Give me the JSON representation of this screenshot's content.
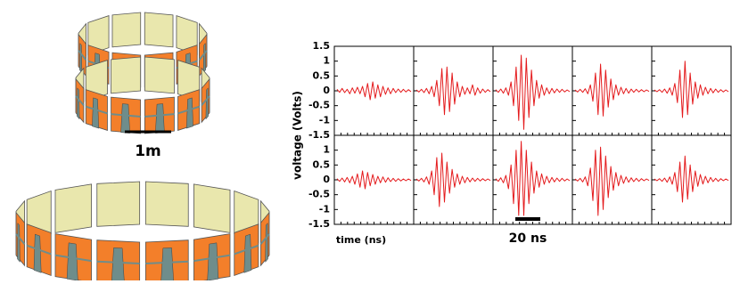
{
  "figure": {
    "scale_label": "1m"
  },
  "chart_data": [
    {
      "type": "line",
      "ylabel": "voltage (Volts)",
      "color": "#e41a1c",
      "ylim": [
        -1.5,
        1.5
      ],
      "yticks": [
        -1.5,
        -1,
        -0.5,
        0,
        0.5,
        1,
        1.5
      ],
      "values": [
        0.05,
        -0.05,
        0.08,
        -0.06,
        0.05,
        -0.1,
        0.1,
        -0.08,
        0.12,
        -0.1,
        0.15,
        -0.2,
        0.25,
        -0.3,
        0.3,
        -0.25,
        0.2,
        -0.2,
        0.15,
        -0.12,
        0.1,
        -0.1,
        0.08,
        -0.06,
        0.06,
        -0.05,
        0.05,
        -0.04,
        0.04,
        -0.03
      ]
    },
    {
      "type": "line",
      "color": "#e41a1c",
      "ylim": [
        -1.5,
        1.5
      ],
      "yticks": [
        -1.5,
        -1,
        -0.5,
        0,
        0.5,
        1,
        1.5
      ],
      "values": [
        0.03,
        -0.04,
        0.05,
        -0.06,
        0.08,
        -0.1,
        0.15,
        -0.2,
        0.35,
        -0.5,
        0.75,
        -0.8,
        0.8,
        -0.7,
        0.6,
        -0.45,
        0.3,
        -0.2,
        0.15,
        -0.12,
        0.1,
        -0.1,
        0.2,
        -0.15,
        0.1,
        -0.08,
        0.06,
        -0.05,
        0.04,
        -0.03
      ]
    },
    {
      "type": "line",
      "color": "#e41a1c",
      "ylim": [
        -1.5,
        1.5
      ],
      "yticks": [
        -1.5,
        -1,
        -0.5,
        0,
        0.5,
        1,
        1.5
      ],
      "values": [
        0.04,
        -0.05,
        0.06,
        -0.08,
        0.1,
        -0.15,
        0.3,
        -0.5,
        0.8,
        -1.0,
        1.2,
        -1.3,
        1.1,
        -0.9,
        0.7,
        -0.5,
        0.35,
        -0.25,
        0.2,
        -0.15,
        0.1,
        -0.1,
        0.08,
        -0.07,
        0.06,
        -0.05,
        0.05,
        -0.04,
        0.03,
        -0.03
      ]
    },
    {
      "type": "line",
      "color": "#e41a1c",
      "ylim": [
        -1.5,
        1.5
      ],
      "yticks": [
        -1.5,
        -1,
        -0.5,
        0,
        0.5,
        1,
        1.5
      ],
      "values": [
        0.03,
        -0.04,
        0.05,
        -0.05,
        0.07,
        -0.1,
        0.2,
        -0.35,
        0.6,
        -0.8,
        0.9,
        -0.85,
        0.7,
        -0.55,
        0.4,
        -0.3,
        0.2,
        -0.15,
        0.12,
        -0.1,
        0.08,
        -0.08,
        0.06,
        -0.05,
        0.05,
        -0.04,
        0.04,
        -0.03,
        0.03,
        -0.02
      ]
    },
    {
      "type": "line",
      "color": "#e41a1c",
      "ylim": [
        -1.5,
        1.5
      ],
      "yticks": [
        -1.5,
        -1,
        -0.5,
        0,
        0.5,
        1,
        1.5
      ],
      "values": [
        0.03,
        -0.03,
        0.04,
        -0.05,
        0.06,
        -0.08,
        0.1,
        -0.15,
        0.25,
        -0.4,
        0.7,
        -0.9,
        1.0,
        -0.8,
        0.6,
        -0.45,
        0.3,
        -0.25,
        0.2,
        -0.15,
        0.12,
        -0.1,
        0.08,
        -0.07,
        0.06,
        -0.05,
        0.04,
        -0.04,
        0.03,
        -0.03
      ]
    },
    {
      "type": "line",
      "xlabel": "time (ns)",
      "color": "#e41a1c",
      "ylim": [
        -1.5,
        1.5
      ],
      "yticks": [
        -1.5,
        -1,
        -0.5,
        0,
        0.5,
        1
      ],
      "values": [
        0.04,
        -0.05,
        0.06,
        -0.07,
        0.08,
        -0.1,
        0.12,
        -0.15,
        0.2,
        -0.25,
        0.3,
        -0.3,
        0.25,
        -0.2,
        0.18,
        -0.15,
        0.12,
        -0.1,
        0.1,
        -0.08,
        0.07,
        -0.06,
        0.05,
        -0.05,
        0.04,
        -0.04,
        0.03,
        -0.03,
        0.03,
        -0.02
      ]
    },
    {
      "type": "line",
      "color": "#e41a1c",
      "ylim": [
        -1.5,
        1.5
      ],
      "yticks": [
        -1.5,
        -1,
        -0.5,
        0,
        0.5,
        1
      ],
      "values": [
        0.03,
        -0.04,
        0.05,
        -0.07,
        0.1,
        -0.15,
        0.3,
        -0.5,
        0.75,
        -0.9,
        0.9,
        -0.75,
        0.6,
        -0.45,
        0.35,
        -0.25,
        0.2,
        -0.15,
        0.12,
        -0.1,
        0.08,
        -0.07,
        0.06,
        -0.05,
        0.05,
        -0.04,
        0.04,
        -0.03,
        0.03,
        -0.02
      ]
    },
    {
      "type": "line",
      "annotation": "20 ns",
      "color": "#e41a1c",
      "ylim": [
        -1.5,
        1.5
      ],
      "yticks": [
        -1.5,
        -1,
        -0.5,
        0,
        0.5,
        1
      ],
      "values": [
        0.04,
        -0.05,
        0.07,
        -0.1,
        0.15,
        -0.3,
        0.5,
        -0.8,
        1.0,
        -1.2,
        1.3,
        -1.2,
        1.0,
        -0.8,
        0.6,
        -0.45,
        0.3,
        -0.25,
        0.2,
        -0.15,
        0.12,
        -0.1,
        0.08,
        -0.07,
        0.06,
        -0.05,
        0.05,
        -0.04,
        0.03,
        -0.03
      ]
    },
    {
      "type": "line",
      "color": "#e41a1c",
      "ylim": [
        -1.5,
        1.5
      ],
      "yticks": [
        -1.5,
        -1,
        -0.5,
        0,
        0.5,
        1
      ],
      "values": [
        0.03,
        -0.04,
        0.05,
        -0.07,
        0.1,
        -0.2,
        0.4,
        -0.7,
        1.0,
        -1.2,
        1.1,
        -1.0,
        0.8,
        -0.6,
        0.45,
        -0.35,
        0.25,
        -0.2,
        0.15,
        -0.12,
        0.1,
        -0.08,
        0.07,
        -0.06,
        0.05,
        -0.05,
        0.04,
        -0.03,
        0.03,
        -0.02
      ]
    },
    {
      "type": "line",
      "color": "#e41a1c",
      "ylim": [
        -1.5,
        1.5
      ],
      "yticks": [
        -1.5,
        -1,
        -0.5,
        0,
        0.5,
        1
      ],
      "values": [
        0.03,
        -0.03,
        0.04,
        -0.05,
        0.06,
        -0.08,
        0.1,
        -0.15,
        0.25,
        -0.4,
        0.6,
        -0.75,
        0.8,
        -0.65,
        0.5,
        -0.4,
        0.3,
        -0.22,
        0.18,
        -0.14,
        0.12,
        -0.1,
        0.08,
        -0.06,
        0.05,
        -0.05,
        0.04,
        -0.03,
        0.03,
        -0.02
      ]
    }
  ]
}
